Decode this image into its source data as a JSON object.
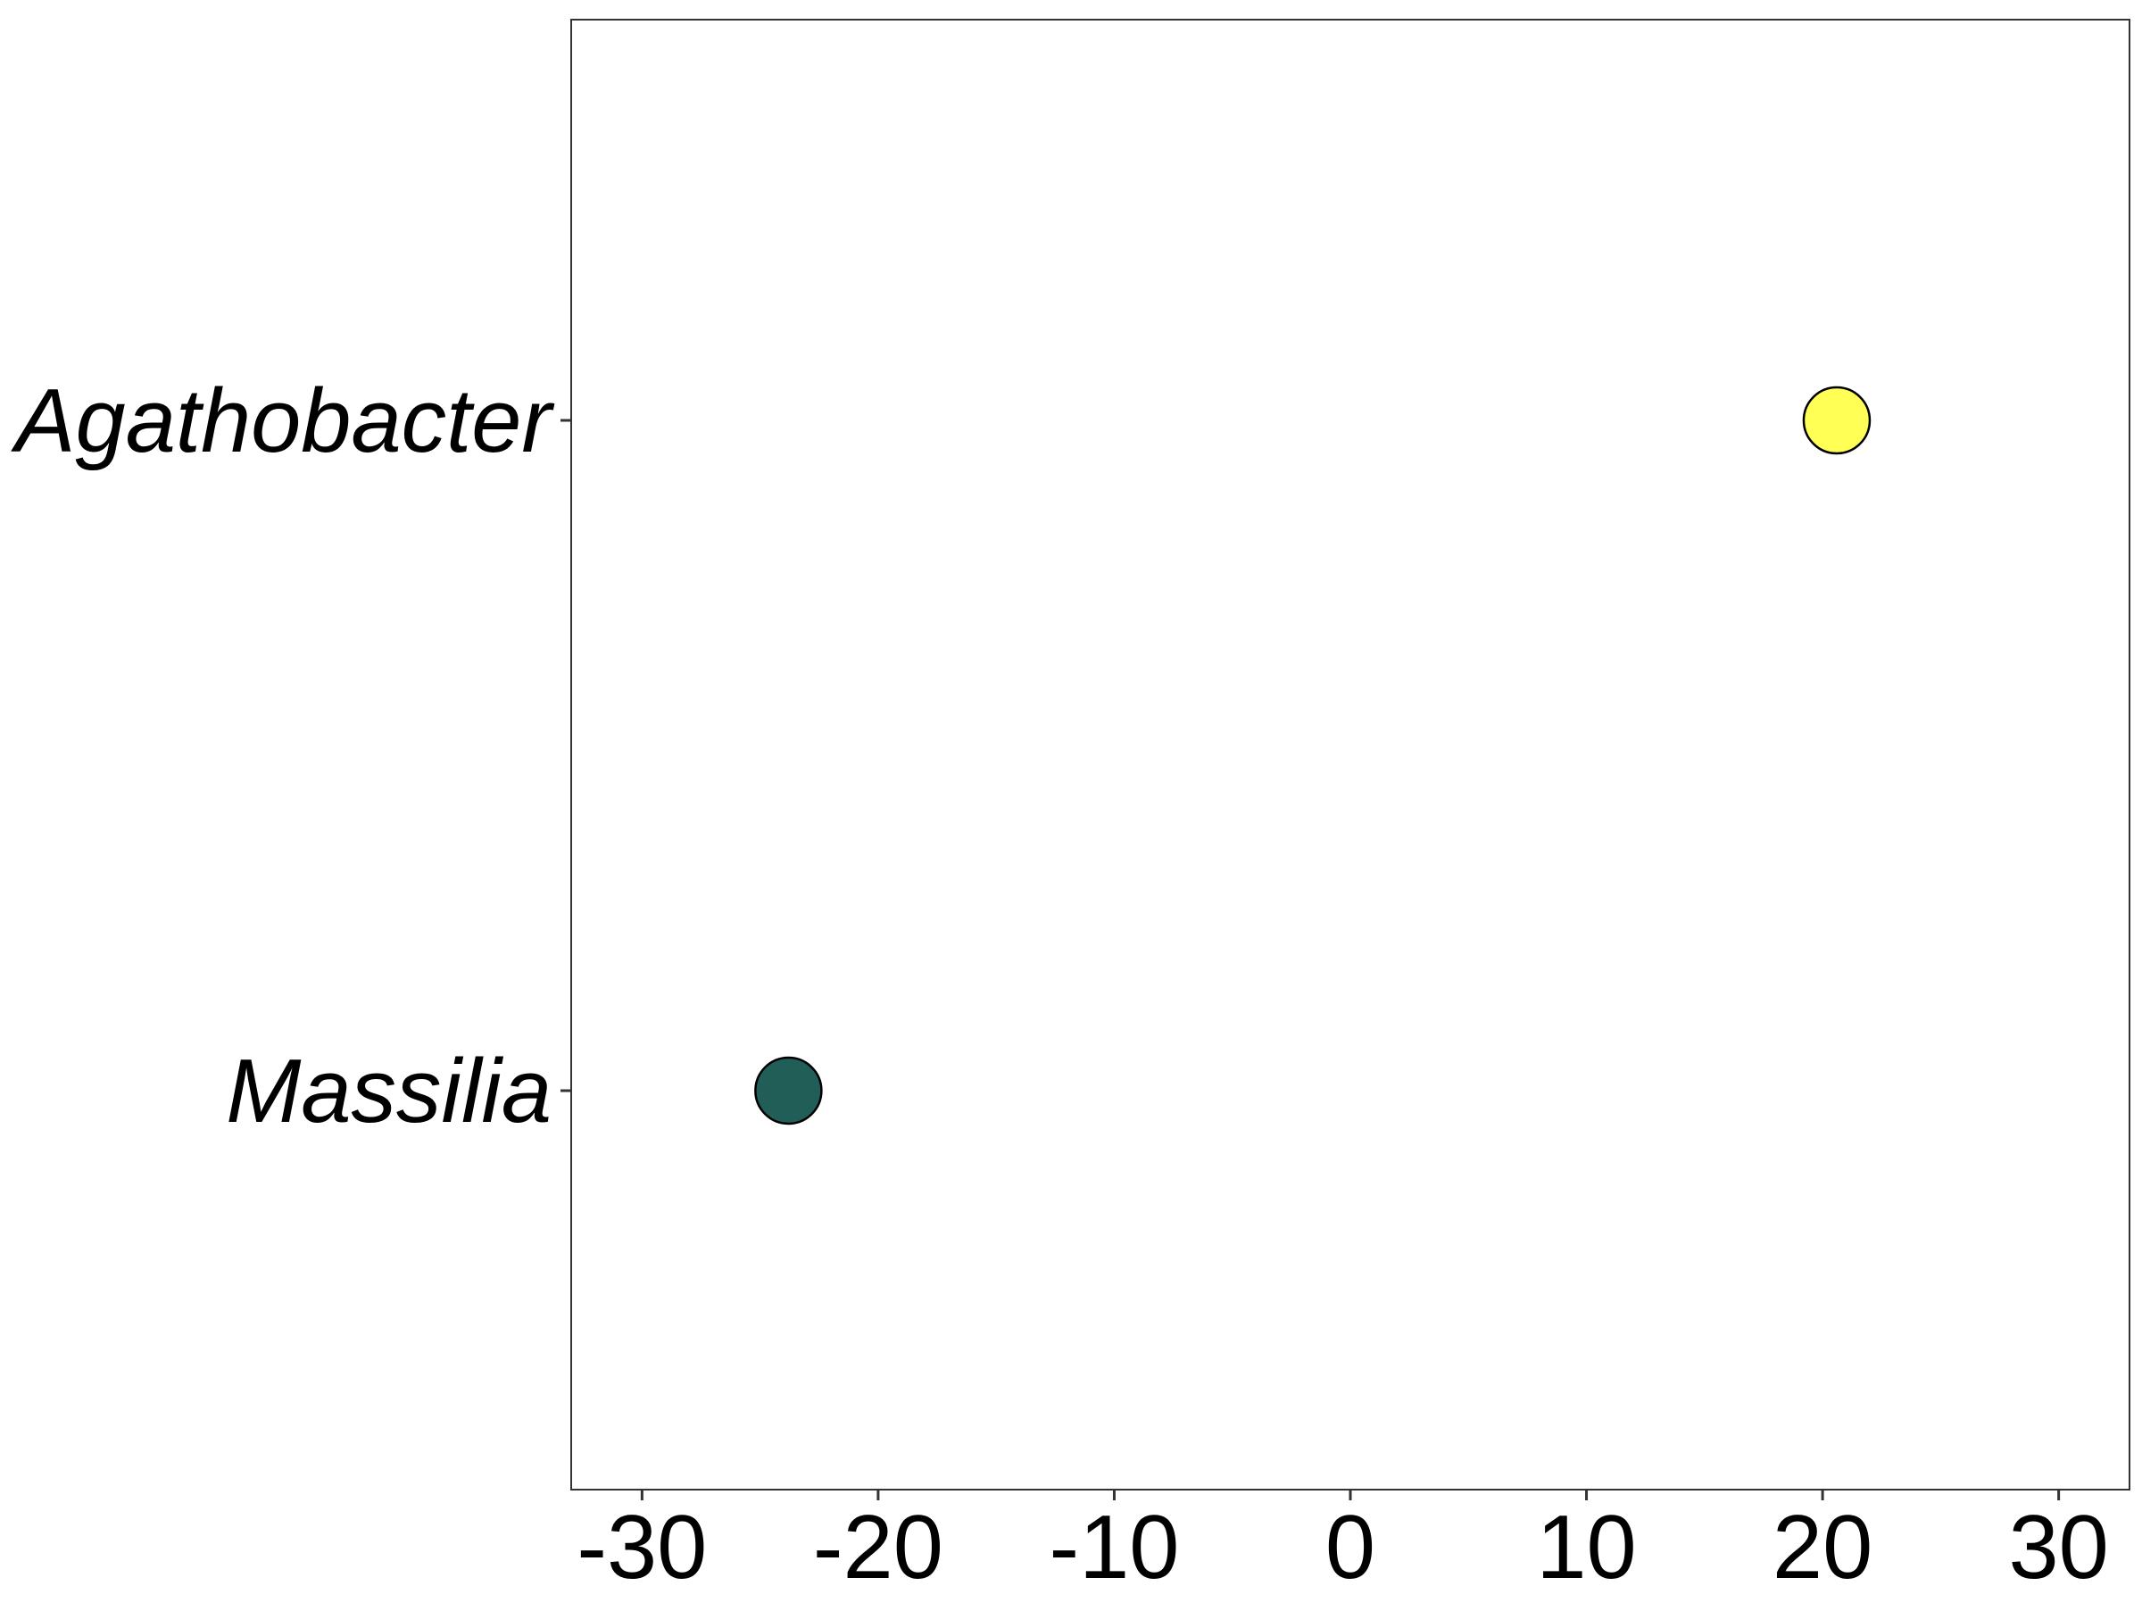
{
  "chart_data": {
    "type": "scatter",
    "title": "",
    "xlabel": "",
    "ylabel": "",
    "xlim": [
      -33,
      33
    ],
    "x_ticks": [
      "-30",
      "-20",
      "-10",
      "0",
      "10",
      "20",
      "30"
    ],
    "categories": [
      "Massilia",
      "Agathobacter"
    ],
    "points": [
      {
        "category": "Agathobacter",
        "x": 20.6,
        "color": "#FFFF55"
      },
      {
        "category": "Massilia",
        "x": -23.8,
        "color": "#225E58"
      }
    ],
    "grid": false,
    "legend": "none"
  }
}
